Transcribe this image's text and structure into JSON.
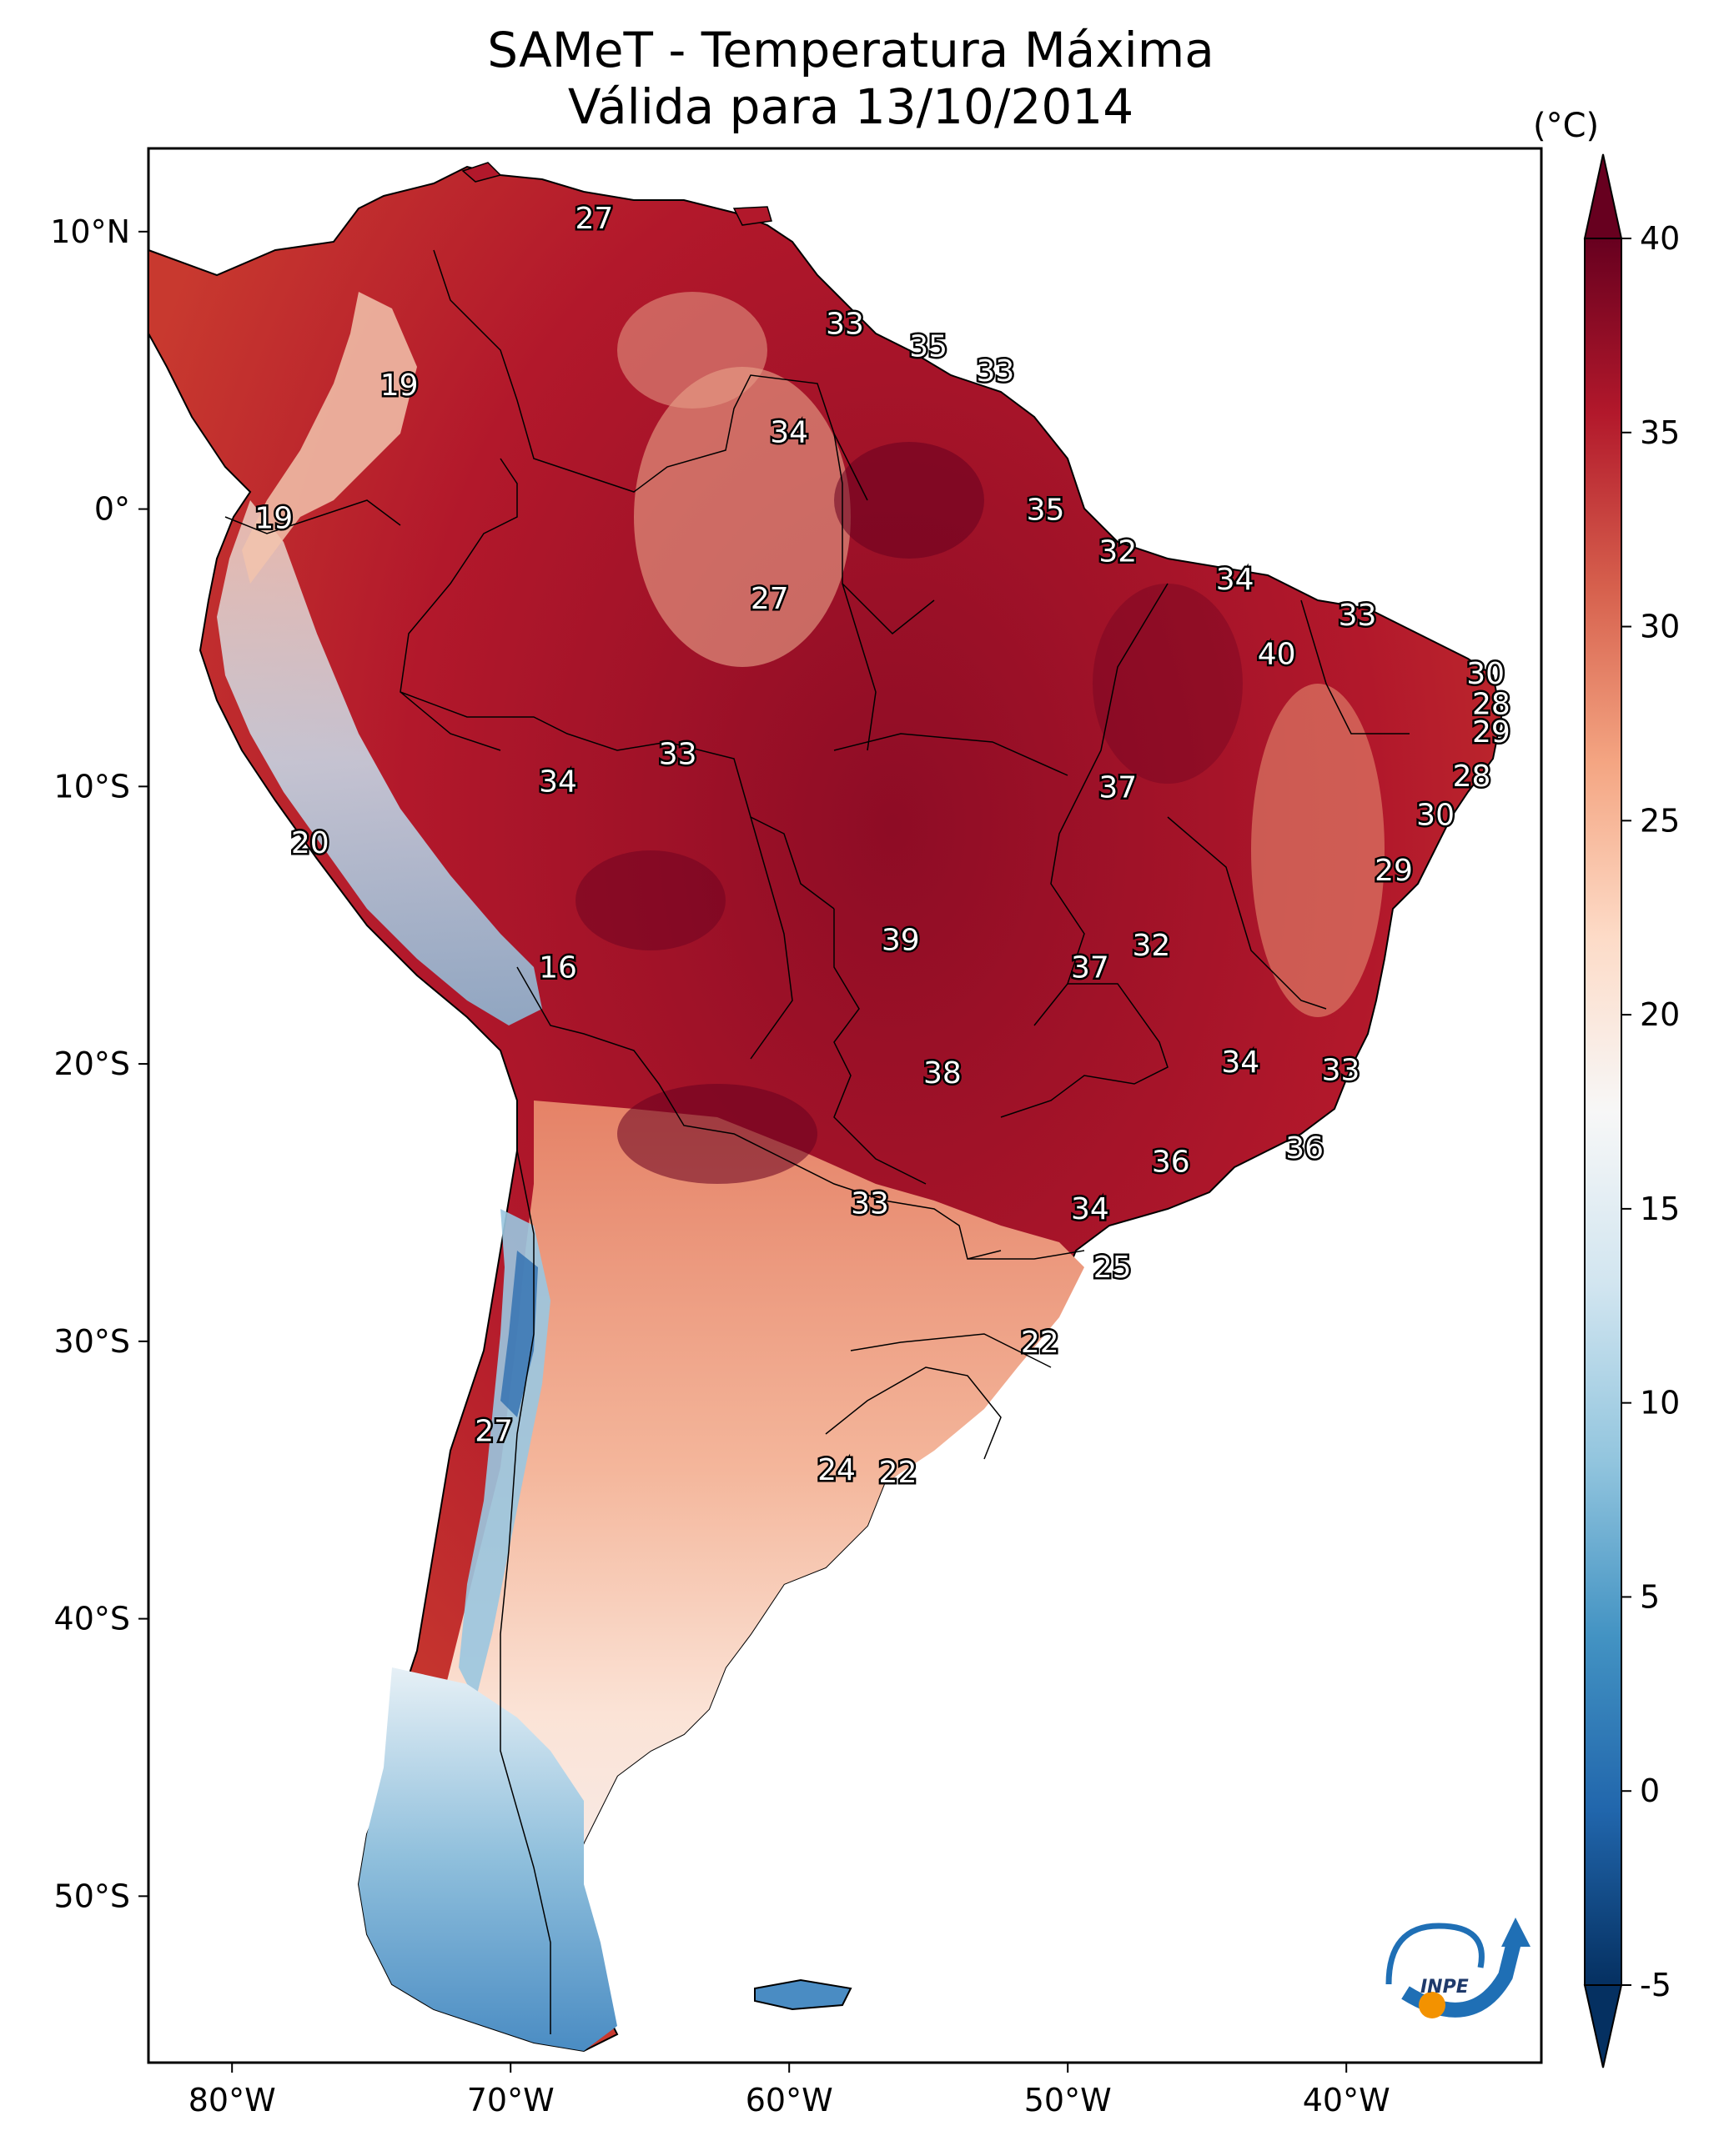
{
  "title": {
    "line1": "SAMeT - Temperatura Máxima",
    "line2": "Válida para 13/10/2014"
  },
  "colorbar": {
    "unit": "(°C)",
    "min": -5,
    "max": 40,
    "ticks": [
      40,
      35,
      30,
      25,
      20,
      15,
      10,
      5,
      0,
      -5
    ],
    "colors": [
      "#053061",
      "#2166ac",
      "#4393c3",
      "#92c5de",
      "#d1e5f0",
      "#f7f7f7",
      "#fddbc7",
      "#f4a582",
      "#d6604d",
      "#b2182b",
      "#67001f"
    ]
  },
  "map": {
    "lon_range": [
      -83,
      -33
    ],
    "lat_range": [
      -56,
      13
    ],
    "lat_ticks": [
      {
        "value": 10,
        "label": "10°N"
      },
      {
        "value": 0,
        "label": "0°"
      },
      {
        "value": -10,
        "label": "10°S"
      },
      {
        "value": -20,
        "label": "20°S"
      },
      {
        "value": -30,
        "label": "30°S"
      },
      {
        "value": -40,
        "label": "40°S"
      },
      {
        "value": -50,
        "label": "50°S"
      }
    ],
    "lon_ticks": [
      {
        "value": -80,
        "label": "80°W"
      },
      {
        "value": -70,
        "label": "70°W"
      },
      {
        "value": -60,
        "label": "60°W"
      },
      {
        "value": -50,
        "label": "50°W"
      },
      {
        "value": -40,
        "label": "40°W"
      }
    ],
    "station_labels": [
      {
        "text": "27",
        "lon": -67,
        "lat": 10.5
      },
      {
        "text": "33",
        "lon": -58,
        "lat": 6.7
      },
      {
        "text": "35",
        "lon": -55,
        "lat": 5.9
      },
      {
        "text": "33",
        "lon": -52.6,
        "lat": 5.0
      },
      {
        "text": "19",
        "lon": -74,
        "lat": 4.5
      },
      {
        "text": "34",
        "lon": -60,
        "lat": 2.8
      },
      {
        "text": "19",
        "lon": -78.5,
        "lat": -0.3
      },
      {
        "text": "35",
        "lon": -50.8,
        "lat": 0.0
      },
      {
        "text": "32",
        "lon": -48.2,
        "lat": -1.5
      },
      {
        "text": "34",
        "lon": -44,
        "lat": -2.5
      },
      {
        "text": "27",
        "lon": -60.7,
        "lat": -3.2
      },
      {
        "text": "33",
        "lon": -39.6,
        "lat": -3.8
      },
      {
        "text": "40",
        "lon": -42.5,
        "lat": -5.2
      },
      {
        "text": "30",
        "lon": -35,
        "lat": -5.9
      },
      {
        "text": "28",
        "lon": -34.8,
        "lat": -7.0
      },
      {
        "text": "29",
        "lon": -34.8,
        "lat": -8.0
      },
      {
        "text": "33",
        "lon": -64,
        "lat": -8.8
      },
      {
        "text": "34",
        "lon": -68.3,
        "lat": -9.8
      },
      {
        "text": "37",
        "lon": -48.2,
        "lat": -10.0
      },
      {
        "text": "28",
        "lon": -35.5,
        "lat": -9.6
      },
      {
        "text": "30",
        "lon": -36.8,
        "lat": -11.0
      },
      {
        "text": "20",
        "lon": -77.2,
        "lat": -12.0
      },
      {
        "text": "29",
        "lon": -38.3,
        "lat": -13.0
      },
      {
        "text": "16",
        "lon": -68.3,
        "lat": -16.5
      },
      {
        "text": "39",
        "lon": -56.0,
        "lat": -15.5
      },
      {
        "text": "32",
        "lon": -47.0,
        "lat": -15.7
      },
      {
        "text": "37",
        "lon": -49.2,
        "lat": -16.5
      },
      {
        "text": "34",
        "lon": -43.8,
        "lat": -19.9
      },
      {
        "text": "33",
        "lon": -40.2,
        "lat": -20.2
      },
      {
        "text": "38",
        "lon": -54.5,
        "lat": -20.3
      },
      {
        "text": "36",
        "lon": -41.5,
        "lat": -23.0
      },
      {
        "text": "36",
        "lon": -46.3,
        "lat": -23.5
      },
      {
        "text": "33",
        "lon": -57.1,
        "lat": -25.0
      },
      {
        "text": "34",
        "lon": -49.2,
        "lat": -25.2
      },
      {
        "text": "25",
        "lon": -48.4,
        "lat": -27.3
      },
      {
        "text": "22",
        "lon": -51.0,
        "lat": -30.0
      },
      {
        "text": "27",
        "lon": -70.6,
        "lat": -33.2
      },
      {
        "text": "24",
        "lon": -58.3,
        "lat": -34.6
      },
      {
        "text": "22",
        "lon": -56.1,
        "lat": -34.7
      }
    ],
    "logo_text": "INPE"
  }
}
